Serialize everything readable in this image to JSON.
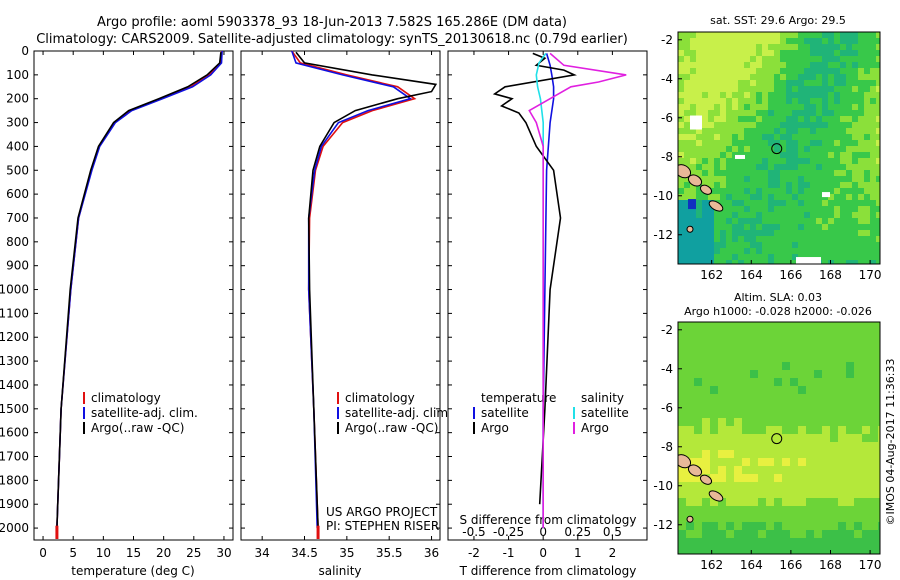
{
  "header": {
    "title_line1": "Argo profile: aoml 5903378_93 18-Jun-2013 7.582S 165.286E (DM data)",
    "title_line2": "Climatology: CARS2009. Satellite-adjusted climatology: synTS_20130618.nc (0.79d earlier)"
  },
  "colors": {
    "climatology": "#e01010",
    "satellite": "#1010e0",
    "argo": "#000000",
    "sal_satellite": "#20e0e8",
    "sal_argo": "#e020e0"
  },
  "depth_axis": {
    "range": [
      0,
      2050
    ],
    "ticks": [
      0,
      100,
      200,
      300,
      400,
      500,
      600,
      700,
      800,
      900,
      1000,
      1100,
      1200,
      1300,
      1400,
      1500,
      1600,
      1700,
      1800,
      1900,
      2000
    ]
  },
  "chart_data": [
    {
      "id": "temperature",
      "type": "line",
      "xlabel": "temperature (deg C)",
      "xlim": [
        -1.5,
        31.5
      ],
      "xticks": [
        0,
        5,
        10,
        15,
        20,
        25,
        30
      ],
      "xtick_labels": [
        "0",
        "5",
        "10",
        "15",
        "20",
        "25",
        "30"
      ],
      "legend": [
        "climatology",
        "satellite-adj. clim.",
        "Argo(..raw -QC)"
      ],
      "series": [
        {
          "name": "climatology",
          "color_key": "climatology",
          "depth": [
            0,
            50,
            100,
            150,
            200,
            250,
            300,
            400,
            500,
            700,
            1000,
            1500,
            2000
          ],
          "values": [
            29.6,
            29.5,
            27.5,
            24.5,
            19.5,
            14.5,
            11.8,
            9.3,
            8.0,
            5.9,
            4.6,
            3.0,
            2.3
          ]
        },
        {
          "name": "satellite-adj. clim.",
          "color_key": "satellite",
          "depth": [
            0,
            50,
            100,
            150,
            200,
            250,
            300,
            400,
            500,
            700,
            1000,
            1500,
            2000
          ],
          "values": [
            29.7,
            29.6,
            27.8,
            24.8,
            19.8,
            14.7,
            12.0,
            9.4,
            8.1,
            5.9,
            4.6,
            3.0,
            2.3
          ]
        },
        {
          "name": "Argo(..raw -QC)",
          "color_key": "argo",
          "depth": [
            5,
            50,
            100,
            150,
            200,
            250,
            300,
            400,
            500,
            700,
            1000,
            1500,
            2000
          ],
          "values": [
            29.5,
            29.3,
            27.2,
            24.0,
            19.2,
            14.2,
            11.7,
            9.2,
            7.9,
            5.8,
            4.5,
            3.0,
            2.3
          ]
        }
      ]
    },
    {
      "id": "salinity",
      "type": "line",
      "xlabel": "salinity",
      "xlim": [
        33.75,
        36.1
      ],
      "xticks": [
        34,
        34.5,
        35,
        35.5,
        36
      ],
      "xtick_labels": [
        "34",
        "34.5",
        "35",
        "35.5",
        "36"
      ],
      "legend": [
        "climatology",
        "satellite-adj. clim.",
        "Argo(..raw -QC)"
      ],
      "annotation_line1": "US ARGO PROJECT",
      "annotation_line2": "PI: STEPHEN RISER",
      "series": [
        {
          "name": "climatology",
          "color_key": "climatology",
          "depth": [
            0,
            50,
            100,
            150,
            200,
            250,
            300,
            400,
            500,
            700,
            1000,
            1500,
            2000
          ],
          "values": [
            34.35,
            34.45,
            35.0,
            35.6,
            35.8,
            35.3,
            34.95,
            34.72,
            34.63,
            34.56,
            34.55,
            34.61,
            34.66
          ]
        },
        {
          "name": "satellite-adj. clim.",
          "color_key": "satellite",
          "depth": [
            0,
            50,
            100,
            150,
            200,
            250,
            300,
            400,
            500,
            700,
            1000,
            1500,
            2000
          ],
          "values": [
            34.35,
            34.4,
            34.95,
            35.55,
            35.75,
            35.25,
            34.9,
            34.7,
            34.62,
            34.55,
            34.55,
            34.61,
            34.65
          ]
        },
        {
          "name": "Argo(..raw -QC)",
          "color_key": "argo",
          "depth": [
            5,
            50,
            100,
            140,
            170,
            200,
            250,
            300,
            400,
            500,
            700,
            1000,
            1500,
            2000
          ],
          "values": [
            34.4,
            34.5,
            35.3,
            36.05,
            36.0,
            35.6,
            35.1,
            34.85,
            34.68,
            34.6,
            34.55,
            34.56,
            34.61,
            34.66
          ]
        }
      ]
    },
    {
      "id": "differences",
      "type": "line",
      "xlabel": "T difference from climatology",
      "xlim": [
        -2.75,
        3.0
      ],
      "xticks": [
        -2,
        -1,
        0,
        1,
        2
      ],
      "xtick_labels": [
        "-2",
        "-1",
        "0",
        "1",
        "2"
      ],
      "top_axis_label": "S difference from climatology",
      "top_xticks": [
        -0.5,
        -0.25,
        0,
        0.25,
        0.5
      ],
      "top_xtick_labels": [
        "-0.5",
        "-0.25",
        "0",
        "0.25",
        "0.5"
      ],
      "legend_temperature_title": "temperature",
      "legend_salinity_title": "salinity",
      "legend_temperature": [
        "satellite",
        "Argo"
      ],
      "legend_salinity": [
        "satellite",
        "Argo"
      ],
      "series": [
        {
          "name": "temperature satellite",
          "color_key": "satellite",
          "axis": "T",
          "depth": [
            10,
            60,
            100,
            150,
            200,
            300,
            500,
            1000,
            1500,
            2000
          ],
          "values": [
            0.1,
            0.2,
            0.25,
            0.3,
            0.3,
            0.2,
            0.1,
            0.05,
            0.0,
            0.0
          ]
        },
        {
          "name": "temperature Argo",
          "color_key": "argo",
          "axis": "T",
          "depth": [
            10,
            30,
            60,
            80,
            100,
            150,
            180,
            200,
            230,
            260,
            300,
            400,
            500,
            700,
            1000,
            1500,
            1900
          ],
          "values": [
            -0.3,
            0.05,
            -0.2,
            0.6,
            0.9,
            -1.1,
            -1.4,
            -0.9,
            -1.2,
            -0.7,
            -0.5,
            -0.2,
            0.3,
            0.5,
            0.2,
            0.05,
            -0.1
          ]
        },
        {
          "name": "salinity satellite",
          "color_key": "sal_satellite",
          "axis": "S",
          "depth": [
            10,
            50,
            100,
            150,
            200,
            300,
            500,
            1000,
            1500,
            2000
          ],
          "values": [
            0.02,
            -0.03,
            -0.05,
            -0.04,
            -0.02,
            0.0,
            0.0,
            0.0,
            0.0,
            0.0
          ]
        },
        {
          "name": "salinity Argo",
          "color_key": "sal_argo",
          "axis": "S",
          "depth": [
            10,
            60,
            100,
            130,
            150,
            200,
            250,
            300,
            400,
            500,
            1000,
            1500,
            2000
          ],
          "values": [
            0.05,
            0.15,
            0.6,
            0.4,
            0.2,
            0.05,
            -0.1,
            -0.05,
            0.0,
            0.0,
            0.0,
            0.0,
            0.0
          ]
        }
      ]
    },
    {
      "id": "sst_map",
      "type": "heatmap",
      "title": "sat. SST: 29.6 Argo: 29.5",
      "xlim": [
        160.3,
        170.5
      ],
      "ylim": [
        -13.5,
        -1.6
      ],
      "xticks": [
        162,
        164,
        166,
        168,
        170
      ],
      "xtick_labels": [
        "162",
        "164",
        "166",
        "168",
        "170"
      ],
      "yticks": [
        -2,
        -4,
        -6,
        -8,
        -10,
        -12
      ],
      "ytick_labels": [
        "-2",
        "-4",
        "-6",
        "-8",
        "-10",
        "-12"
      ],
      "float_position": [
        165.286,
        -7.582
      ]
    },
    {
      "id": "sla_map",
      "type": "heatmap",
      "title_line1": "Altim. SLA: 0.03",
      "title_line2": "Argo h1000: -0.028 h2000: -0.026",
      "xlim": [
        160.3,
        170.5
      ],
      "ylim": [
        -13.5,
        -1.6
      ],
      "xticks": [
        162,
        164,
        166,
        168,
        170
      ],
      "xtick_labels": [
        "162",
        "164",
        "166",
        "168",
        "170"
      ],
      "yticks": [
        -2,
        -4,
        -6,
        -8,
        -10,
        -12
      ],
      "ytick_labels": [
        "-2",
        "-4",
        "-6",
        "-8",
        "-10",
        "-12"
      ],
      "float_position": [
        165.286,
        -7.582
      ]
    }
  ],
  "footer": {
    "credit": "©IMOS 04-Aug-2017 11:36:33"
  }
}
